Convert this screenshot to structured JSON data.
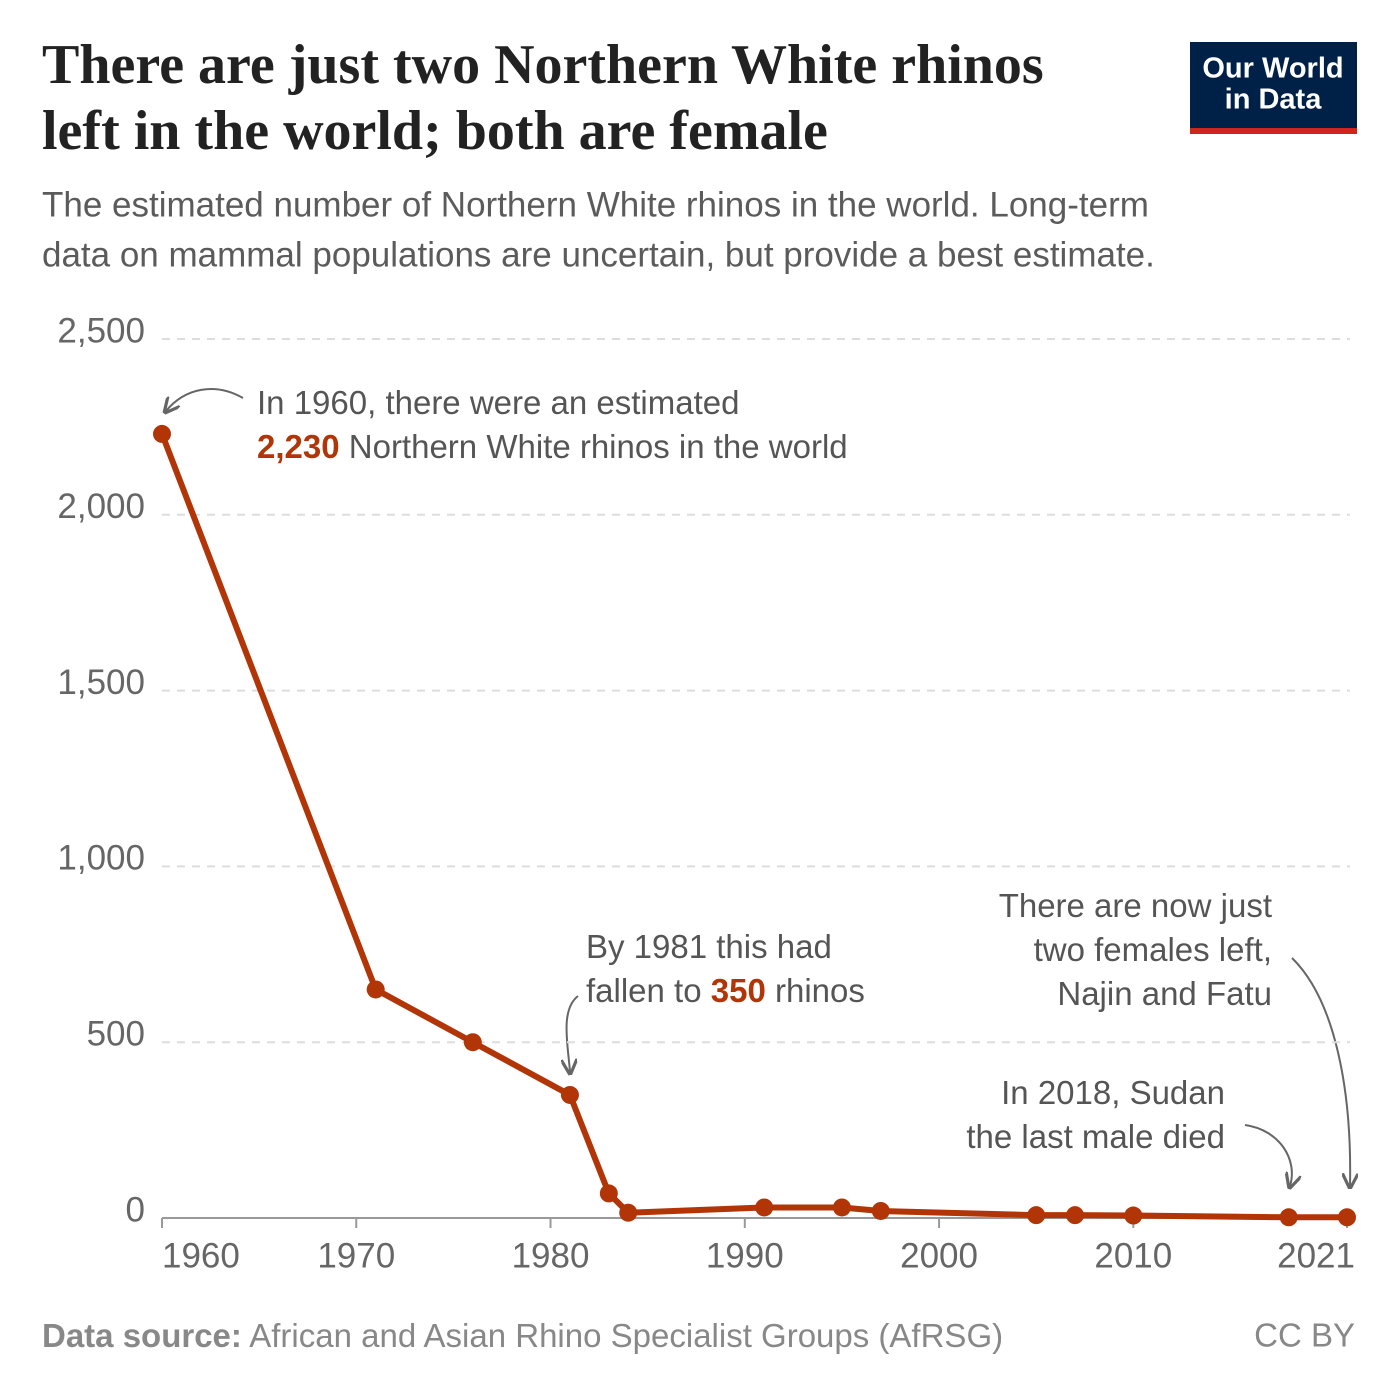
{
  "chart_data": {
    "type": "line",
    "title_lines": [
      "There are just two Northern White rhinos",
      "left in the world; both are female"
    ],
    "subtitle_lines": [
      "The estimated number of Northern White rhinos in the world. Long-term",
      "data on mammal populations are uncertain, but provide a best estimate."
    ],
    "logo_lines": [
      "Our World",
      "in Data"
    ],
    "x": [
      1960,
      1971,
      1976,
      1981,
      1983,
      1984,
      1991,
      1995,
      1997,
      2005,
      2007,
      2010,
      2018,
      2021
    ],
    "values": [
      2230,
      650,
      500,
      350,
      70,
      15,
      30,
      30,
      20,
      8,
      8,
      7,
      2,
      2
    ],
    "color": "#b13507",
    "xlim": [
      1960,
      2021
    ],
    "xticks": [
      1960,
      1970,
      1980,
      1990,
      2000,
      2010,
      2021
    ],
    "ylim": [
      0,
      2500
    ],
    "yticks": [
      0,
      {
        "value": 500,
        "label": "500"
      },
      {
        "value": 1000,
        "label": "1,000"
      },
      {
        "value": 1500,
        "label": "1,500"
      },
      {
        "value": 2000,
        "label": "2,000"
      },
      {
        "value": 2500,
        "label": "2,500"
      }
    ],
    "grid": true,
    "annotations": [
      {
        "lines": [
          [
            {
              "text": "In 1960, there were an estimated"
            }
          ],
          [
            {
              "text": "2,230",
              "color": "#b13507",
              "bold": true
            },
            {
              "text": " Northern White rhinos in the world"
            }
          ]
        ]
      },
      {
        "lines": [
          [
            {
              "text": "By 1981 this had"
            }
          ],
          [
            {
              "text": "fallen to "
            },
            {
              "text": "350",
              "color": "#b13507",
              "bold": true
            },
            {
              "text": " rhinos"
            }
          ]
        ]
      },
      {
        "lines": [
          [
            {
              "text": "There are now just"
            }
          ],
          [
            {
              "text": "two females left,"
            }
          ],
          [
            {
              "text": "Najin and Fatu"
            }
          ]
        ]
      },
      {
        "lines": [
          [
            {
              "text": "In 2018, Sudan"
            }
          ],
          [
            {
              "text": "the last male died"
            }
          ]
        ]
      }
    ],
    "source_label": "Data source:",
    "source": " African and Asian Rhino Specialist Groups (AfRSG)",
    "license": "CC BY"
  }
}
